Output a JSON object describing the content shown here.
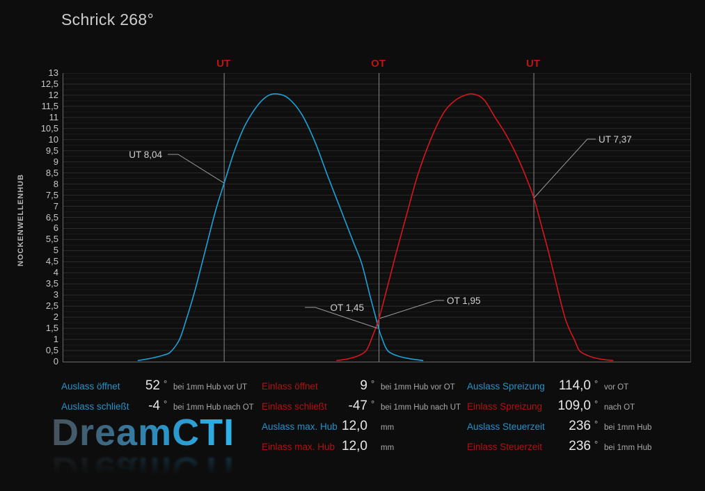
{
  "title": "Schrick 268°",
  "watermark": "DreamCTI",
  "chart_data": {
    "type": "line",
    "title": "Schrick 268°",
    "xlabel": "",
    "ylabel": "NOCKENWELLENHUB",
    "ylim": [
      0,
      13
    ],
    "x_range_deg": [
      -187,
      542
    ],
    "grid": {
      "on": true,
      "minor_step_mm": 0.25,
      "major_step_mm": 0.5
    },
    "legend_position": "none",
    "y_tick_labels": [
      "13",
      "12,5",
      "12",
      "11,5",
      "11",
      "10,5",
      "10",
      "9,5",
      "9",
      "8,5",
      "8",
      "7,5",
      "7",
      "6,5",
      "6",
      "5,5",
      "5",
      "4,5",
      "4",
      "3,5",
      "3",
      "2,5",
      "2",
      "1,5",
      "1",
      "0,5",
      "0"
    ],
    "x_markers": [
      {
        "label": "UT",
        "deg": 0
      },
      {
        "label": "OT",
        "deg": 180
      },
      {
        "label": "UT",
        "deg": 360
      }
    ],
    "series": [
      {
        "name": "Auslass",
        "color": "#1da2d8",
        "points_deg_mm": [
          [
            -100,
            0.05
          ],
          [
            -84,
            0.16
          ],
          [
            -70,
            0.3
          ],
          [
            -62,
            0.45
          ],
          [
            -52,
            1.0
          ],
          [
            -44,
            1.9
          ],
          [
            -34,
            3.2
          ],
          [
            -22,
            5.0
          ],
          [
            -10,
            6.8
          ],
          [
            0,
            8.04
          ],
          [
            12,
            9.5
          ],
          [
            25,
            10.7
          ],
          [
            40,
            11.6
          ],
          [
            52,
            12.0
          ],
          [
            63,
            12.05
          ],
          [
            75,
            11.85
          ],
          [
            90,
            11.15
          ],
          [
            105,
            9.95
          ],
          [
            120,
            8.4
          ],
          [
            135,
            6.9
          ],
          [
            150,
            5.4
          ],
          [
            160,
            4.4
          ],
          [
            170,
            2.9
          ],
          [
            180,
            1.45
          ],
          [
            184,
            1.0
          ],
          [
            188,
            0.62
          ],
          [
            193,
            0.4
          ],
          [
            205,
            0.22
          ],
          [
            218,
            0.12
          ],
          [
            231,
            0.05
          ]
        ]
      },
      {
        "name": "Einlass",
        "color": "#d8161d",
        "points_deg_mm": [
          [
            131,
            0.05
          ],
          [
            143,
            0.12
          ],
          [
            155,
            0.25
          ],
          [
            163,
            0.42
          ],
          [
            167,
            0.62
          ],
          [
            171,
            1.0
          ],
          [
            180,
            1.95
          ],
          [
            190,
            3.4
          ],
          [
            200,
            4.9
          ],
          [
            212,
            6.6
          ],
          [
            225,
            8.4
          ],
          [
            240,
            10.0
          ],
          [
            255,
            11.2
          ],
          [
            268,
            11.75
          ],
          [
            280,
            12.0
          ],
          [
            290,
            12.05
          ],
          [
            302,
            11.8
          ],
          [
            315,
            11.0
          ],
          [
            328,
            10.2
          ],
          [
            340,
            9.3
          ],
          [
            350,
            8.4
          ],
          [
            360,
            7.37
          ],
          [
            369,
            6.1
          ],
          [
            378,
            4.8
          ],
          [
            388,
            3.2
          ],
          [
            396,
            2.0
          ],
          [
            402,
            1.4
          ],
          [
            407,
            1.0
          ],
          [
            412,
            0.55
          ],
          [
            417,
            0.38
          ],
          [
            428,
            0.2
          ],
          [
            440,
            0.1
          ],
          [
            452,
            0.05
          ]
        ]
      }
    ],
    "annotations": [
      {
        "text": "UT 8,04",
        "target_deg": 0,
        "target_mm": 8.04
      },
      {
        "text": "OT 1,45",
        "target_deg": 178.5,
        "target_mm": 1.5
      },
      {
        "text": "OT 1,95",
        "target_deg": 181,
        "target_mm": 1.95
      },
      {
        "text": "UT 7,37",
        "target_deg": 360,
        "target_mm": 7.37
      }
    ]
  },
  "table": {
    "groups": [
      {
        "rows": [
          {
            "label": "Auslass öffnet",
            "type": "auslass",
            "value": "52",
            "deg": true,
            "unit": "bei 1mm Hub vor UT"
          },
          {
            "label": "Auslass schließt",
            "type": "auslass",
            "value": "-4",
            "deg": true,
            "unit": "bei 1mm Hub nach OT"
          }
        ]
      },
      {
        "rows": [
          {
            "label": "Einlass öffnet",
            "type": "einlass",
            "value": "9",
            "deg": true,
            "unit": "bei 1mm Hub vor OT"
          },
          {
            "label": "Einlass schließt",
            "type": "einlass",
            "value": "-47",
            "deg": true,
            "unit": "bei 1mm Hub nach UT"
          },
          {
            "label": "Auslass max. Hub",
            "type": "auslass",
            "value": "12,0",
            "deg": false,
            "unit": "mm"
          },
          {
            "label": "Einlass max. Hub",
            "type": "einlass",
            "value": "12,0",
            "deg": false,
            "unit": "mm"
          }
        ]
      },
      {
        "rows": [
          {
            "label": "Auslass Spreizung",
            "type": "auslass",
            "value": "114,0",
            "deg": true,
            "unit": "vor OT"
          },
          {
            "label": "Einlass Spreizung",
            "type": "einlass",
            "value": "109,0",
            "deg": true,
            "unit": "nach OT"
          },
          {
            "label": "Auslass Steuerzeit",
            "type": "auslass",
            "value": "236",
            "deg": true,
            "unit": "bei 1mm Hub"
          },
          {
            "label": "Einlass Steuerzeit",
            "type": "einlass",
            "value": "236",
            "deg": true,
            "unit": "bei 1mm Hub"
          }
        ]
      }
    ]
  }
}
